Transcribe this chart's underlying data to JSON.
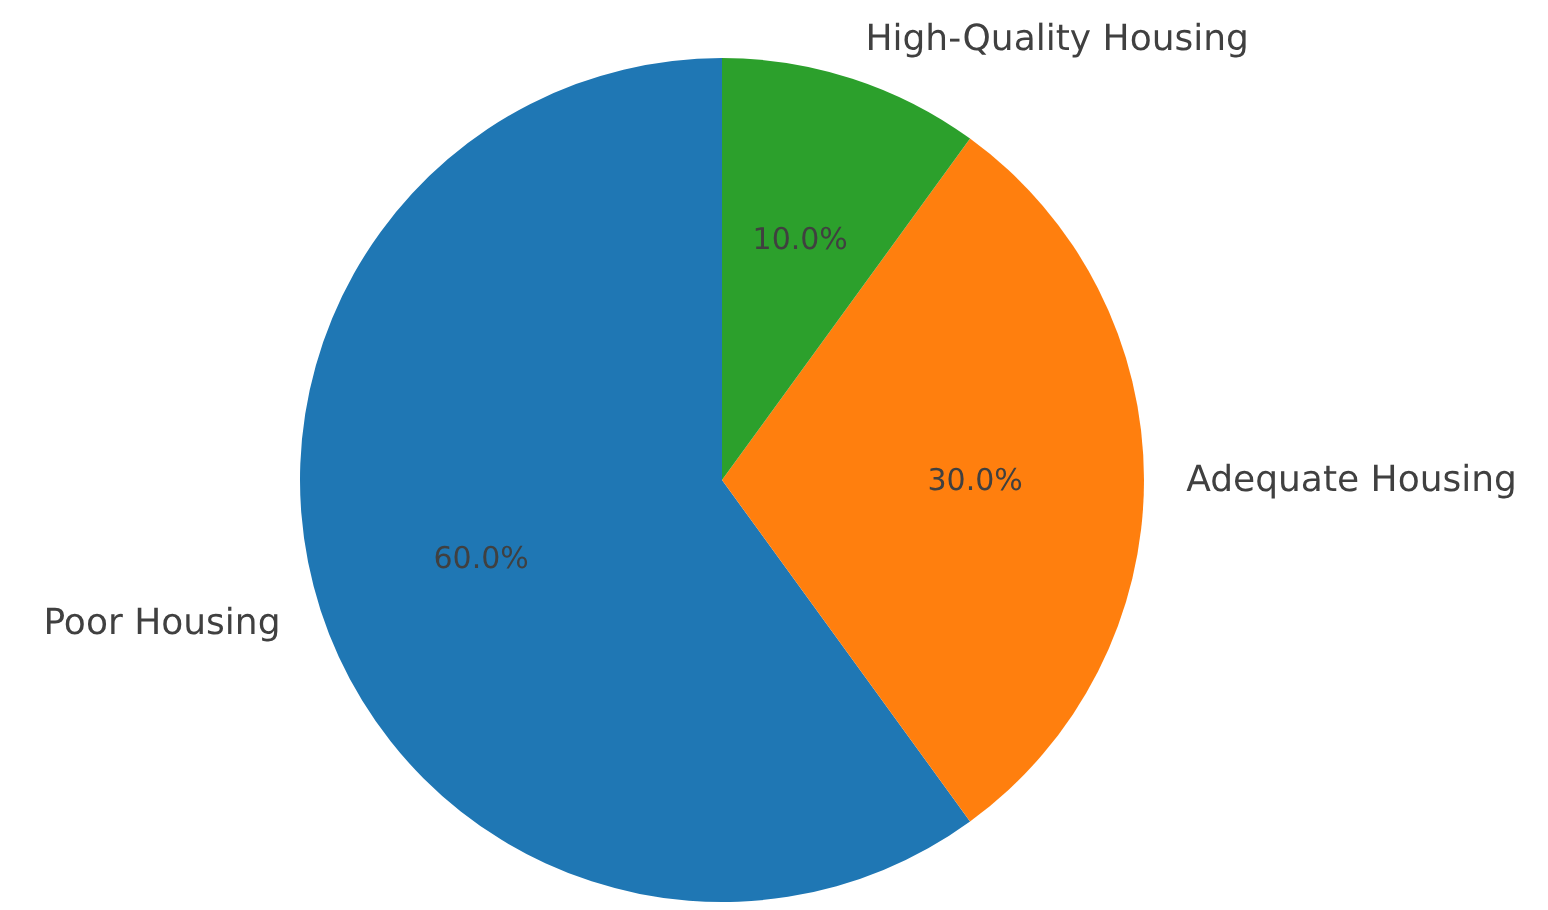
{
  "chart_data": {
    "type": "pie",
    "categories": [
      "Poor Housing",
      "Adequate Housing",
      "High-Quality Housing"
    ],
    "values": [
      60,
      30,
      10
    ],
    "colors": [
      "#1f77b4",
      "#ff7f0e",
      "#2ca02c"
    ],
    "value_labels": [
      "60.0%",
      "30.0%",
      "10.0%"
    ]
  }
}
